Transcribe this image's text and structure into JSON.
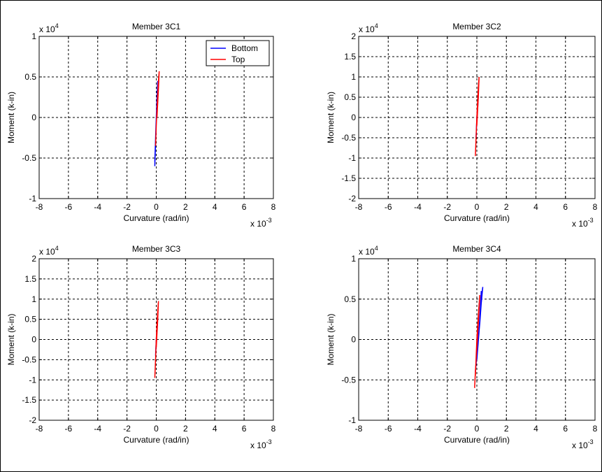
{
  "figure": {
    "background": "#ffffff"
  },
  "chart_data": [
    {
      "type": "line",
      "title": "Member 3C1",
      "xlabel": "Curvature (rad/in)",
      "ylabel": "Moment (k-in)",
      "x_exponent_label": "x 10",
      "x_exponent": "-3",
      "y_exponent_label": "x 10",
      "y_exponent": "4",
      "xlim": [
        -8,
        8
      ],
      "ylim": [
        -1,
        1
      ],
      "xticks": [
        -8,
        -6,
        -4,
        -2,
        0,
        2,
        4,
        6,
        8
      ],
      "yticks": [
        -1,
        -0.5,
        0,
        0.5,
        1
      ],
      "x_tick_labels": [
        "-8",
        "-6",
        "-4",
        "-2",
        "0",
        "2",
        "4",
        "6",
        "8"
      ],
      "y_tick_labels": [
        "-1",
        "-0.5",
        "0",
        "0.5",
        "1"
      ],
      "grid": true,
      "legend": {
        "position": "top-right",
        "entries": [
          "Bottom",
          "Top"
        ]
      },
      "series": [
        {
          "name": "Bottom",
          "color": "#0000ff",
          "x": [
            -0.1,
            -0.05,
            0.0,
            0.05,
            0.1,
            0.05,
            -0.02,
            -0.1
          ],
          "y": [
            -0.6,
            -0.3,
            0.0,
            0.25,
            0.45,
            0.2,
            -0.1,
            -0.55
          ]
        },
        {
          "name": "Top",
          "color": "#ff0000",
          "x": [
            -0.05,
            0.0,
            0.05,
            0.1,
            0.15,
            0.2,
            0.15,
            0.05
          ],
          "y": [
            -0.35,
            -0.1,
            0.1,
            0.3,
            0.45,
            0.57,
            0.35,
            0.0
          ]
        }
      ]
    },
    {
      "type": "line",
      "title": "Member 3C2",
      "xlabel": "Curvature (rad/in)",
      "ylabel": "Moment (k-in)",
      "x_exponent_label": "x 10",
      "x_exponent": "-3",
      "y_exponent_label": "x 10",
      "y_exponent": "4",
      "xlim": [
        -8,
        8
      ],
      "ylim": [
        -2,
        2
      ],
      "xticks": [
        -8,
        -6,
        -4,
        -2,
        0,
        2,
        4,
        6,
        8
      ],
      "yticks": [
        -2,
        -1.5,
        -1,
        -0.5,
        0,
        0.5,
        1,
        1.5,
        2
      ],
      "x_tick_labels": [
        "-8",
        "-6",
        "-4",
        "-2",
        "0",
        "2",
        "4",
        "6",
        "8"
      ],
      "y_tick_labels": [
        "-2",
        "-1.5",
        "-1",
        "-0.5",
        "0",
        "0.5",
        "1",
        "1.5",
        "2"
      ],
      "grid": true,
      "series": [
        {
          "name": "Bottom",
          "color": "#0000ff",
          "x": [
            -0.05,
            0.0,
            0.05,
            0.1,
            0.05
          ],
          "y": [
            -0.5,
            0.0,
            0.3,
            0.55,
            0.2
          ]
        },
        {
          "name": "Top",
          "color": "#ff0000",
          "x": [
            -0.1,
            -0.05,
            0.0,
            0.05,
            0.1,
            0.15,
            0.1,
            0.0
          ],
          "y": [
            -0.95,
            -0.5,
            0.0,
            0.4,
            0.75,
            1.0,
            0.5,
            -0.2
          ]
        }
      ]
    },
    {
      "type": "line",
      "title": "Member 3C3",
      "xlabel": "Curvature (rad/in)",
      "ylabel": "Moment (k-in)",
      "x_exponent_label": "x 10",
      "x_exponent": "-3",
      "y_exponent_label": "x 10",
      "y_exponent": "4",
      "xlim": [
        -8,
        8
      ],
      "ylim": [
        -2,
        2
      ],
      "xticks": [
        -8,
        -6,
        -4,
        -2,
        0,
        2,
        4,
        6,
        8
      ],
      "yticks": [
        -2,
        -1.5,
        -1,
        -0.5,
        0,
        0.5,
        1,
        1.5,
        2
      ],
      "x_tick_labels": [
        "-8",
        "-6",
        "-4",
        "-2",
        "0",
        "2",
        "4",
        "6",
        "8"
      ],
      "y_tick_labels": [
        "-2",
        "-1.5",
        "-1",
        "-0.5",
        "0",
        "0.5",
        "1",
        "1.5",
        "2"
      ],
      "grid": true,
      "series": [
        {
          "name": "Bottom",
          "color": "#0000ff",
          "x": [
            -0.05,
            0.0,
            0.05,
            0.1,
            0.05
          ],
          "y": [
            -0.4,
            0.0,
            0.3,
            0.55,
            0.2
          ]
        },
        {
          "name": "Top",
          "color": "#ff0000",
          "x": [
            -0.1,
            -0.05,
            0.0,
            0.05,
            0.1,
            0.15,
            0.1,
            0.0
          ],
          "y": [
            -0.95,
            -0.5,
            0.0,
            0.4,
            0.7,
            0.95,
            0.5,
            -0.2
          ]
        }
      ]
    },
    {
      "type": "line",
      "title": "Member 3C4",
      "xlabel": "Curvature (rad/in)",
      "ylabel": "Moment (k-in)",
      "x_exponent_label": "x 10",
      "x_exponent": "-3",
      "y_exponent_label": "x 10",
      "y_exponent": "4",
      "xlim": [
        -8,
        8
      ],
      "ylim": [
        -1,
        1
      ],
      "xticks": [
        -8,
        -6,
        -4,
        -2,
        0,
        2,
        4,
        6,
        8
      ],
      "yticks": [
        -1,
        -0.5,
        0,
        0.5,
        1
      ],
      "x_tick_labels": [
        "-8",
        "-6",
        "-4",
        "-2",
        "0",
        "2",
        "4",
        "6",
        "8"
      ],
      "y_tick_labels": [
        "-1",
        "-0.5",
        "0",
        "0.5",
        "1"
      ],
      "grid": true,
      "series": [
        {
          "name": "Bottom",
          "color": "#0000ff",
          "x": [
            -0.1,
            0.0,
            0.1,
            0.2,
            0.3,
            0.4,
            0.3,
            0.2,
            0.1,
            0.0,
            0.15,
            0.3
          ],
          "y": [
            -0.4,
            -0.2,
            0.0,
            0.2,
            0.45,
            0.65,
            0.5,
            0.25,
            0.0,
            -0.25,
            0.1,
            0.6
          ]
        },
        {
          "name": "Top",
          "color": "#ff0000",
          "x": [
            -0.15,
            -0.1,
            0.0,
            0.1,
            0.2,
            0.1,
            0.0,
            -0.1
          ],
          "y": [
            -0.6,
            -0.4,
            -0.1,
            0.2,
            0.55,
            0.3,
            0.0,
            -0.45
          ]
        }
      ]
    }
  ]
}
